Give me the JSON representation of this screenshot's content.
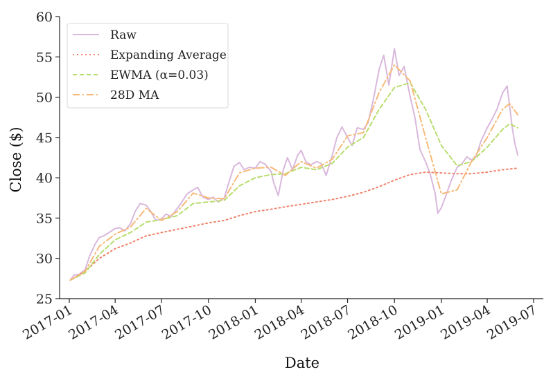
{
  "chart_data": {
    "type": "line",
    "title": "",
    "xlabel": "Date",
    "ylabel": "Close ($)",
    "ylim": [
      25,
      60
    ],
    "yticks": [
      25,
      30,
      35,
      40,
      45,
      50,
      55,
      60
    ],
    "xlim": [
      "2016-12-13",
      "2019-07-20"
    ],
    "xticks": [
      {
        "date": "2017-01-01",
        "label": "2017-01"
      },
      {
        "date": "2017-04-01",
        "label": "2017-04"
      },
      {
        "date": "2017-07-01",
        "label": "2017-07"
      },
      {
        "date": "2017-10-01",
        "label": "2017-10"
      },
      {
        "date": "2018-01-01",
        "label": "2018-01"
      },
      {
        "date": "2018-04-01",
        "label": "2018-04"
      },
      {
        "date": "2018-07-01",
        "label": "2018-07"
      },
      {
        "date": "2018-10-01",
        "label": "2018-10"
      },
      {
        "date": "2019-01-01",
        "label": "2019-01"
      },
      {
        "date": "2019-04-01",
        "label": "2019-04"
      },
      {
        "date": "2019-07-01",
        "label": "2019-07"
      }
    ],
    "grid": false,
    "legend_position": "upper-left",
    "series": [
      {
        "name": "Raw",
        "color": "#d9b8dc",
        "dash": "solid",
        "points": [
          [
            "2017-01-03",
            27.3
          ],
          [
            "2017-01-10",
            27.9
          ],
          [
            "2017-01-20",
            28.0
          ],
          [
            "2017-02-01",
            28.6
          ],
          [
            "2017-02-10",
            30.3
          ],
          [
            "2017-02-20",
            31.7
          ],
          [
            "2017-03-01",
            32.6
          ],
          [
            "2017-03-10",
            32.8
          ],
          [
            "2017-03-20",
            33.2
          ],
          [
            "2017-04-01",
            33.7
          ],
          [
            "2017-04-10",
            33.8
          ],
          [
            "2017-04-20",
            33.4
          ],
          [
            "2017-05-01",
            34.3
          ],
          [
            "2017-05-10",
            35.8
          ],
          [
            "2017-05-20",
            36.8
          ],
          [
            "2017-06-01",
            36.6
          ],
          [
            "2017-06-10",
            35.8
          ],
          [
            "2017-06-20",
            34.7
          ],
          [
            "2017-07-01",
            34.9
          ],
          [
            "2017-07-10",
            35.5
          ],
          [
            "2017-07-20",
            35.2
          ],
          [
            "2017-08-01",
            36.2
          ],
          [
            "2017-08-10",
            37.0
          ],
          [
            "2017-08-20",
            38.0
          ],
          [
            "2017-09-01",
            38.5
          ],
          [
            "2017-09-10",
            38.8
          ],
          [
            "2017-09-20",
            37.6
          ],
          [
            "2017-10-01",
            37.3
          ],
          [
            "2017-10-10",
            37.6
          ],
          [
            "2017-10-20",
            37.0
          ],
          [
            "2017-11-01",
            37.5
          ],
          [
            "2017-11-10",
            39.4
          ],
          [
            "2017-11-20",
            41.4
          ],
          [
            "2017-12-01",
            41.9
          ],
          [
            "2017-12-10",
            41.0
          ],
          [
            "2017-12-20",
            41.3
          ],
          [
            "2018-01-01",
            41.2
          ],
          [
            "2018-01-10",
            42.0
          ],
          [
            "2018-01-20",
            41.7
          ],
          [
            "2018-02-01",
            40.8
          ],
          [
            "2018-02-06",
            39.4
          ],
          [
            "2018-02-15",
            37.8
          ],
          [
            "2018-02-25",
            41.0
          ],
          [
            "2018-03-05",
            42.5
          ],
          [
            "2018-03-15",
            41.0
          ],
          [
            "2018-03-25",
            42.8
          ],
          [
            "2018-04-01",
            43.4
          ],
          [
            "2018-04-10",
            42.0
          ],
          [
            "2018-04-20",
            41.6
          ],
          [
            "2018-05-01",
            42.0
          ],
          [
            "2018-05-10",
            41.8
          ],
          [
            "2018-05-20",
            40.3
          ],
          [
            "2018-06-01",
            42.8
          ],
          [
            "2018-06-10",
            45.0
          ],
          [
            "2018-06-20",
            46.3
          ],
          [
            "2018-07-01",
            45.0
          ],
          [
            "2018-07-10",
            44.0
          ],
          [
            "2018-07-20",
            46.2
          ],
          [
            "2018-08-01",
            46.0
          ],
          [
            "2018-08-10",
            46.8
          ],
          [
            "2018-08-20",
            49.5
          ],
          [
            "2018-09-01",
            53.5
          ],
          [
            "2018-09-10",
            55.2
          ],
          [
            "2018-09-20",
            51.5
          ],
          [
            "2018-10-01",
            56.0
          ],
          [
            "2018-10-10",
            52.7
          ],
          [
            "2018-10-20",
            53.8
          ],
          [
            "2018-11-01",
            50.0
          ],
          [
            "2018-11-10",
            47.5
          ],
          [
            "2018-11-20",
            43.5
          ],
          [
            "2018-12-01",
            42.0
          ],
          [
            "2018-12-10",
            40.5
          ],
          [
            "2018-12-20",
            38.0
          ],
          [
            "2018-12-25",
            35.6
          ],
          [
            "2019-01-01",
            36.3
          ],
          [
            "2019-01-10",
            37.8
          ],
          [
            "2019-01-20",
            39.6
          ],
          [
            "2019-02-01",
            41.3
          ],
          [
            "2019-02-10",
            41.7
          ],
          [
            "2019-02-20",
            42.6
          ],
          [
            "2019-03-01",
            42.2
          ],
          [
            "2019-03-10",
            42.6
          ],
          [
            "2019-03-20",
            44.6
          ],
          [
            "2019-04-01",
            46.2
          ],
          [
            "2019-04-10",
            47.2
          ],
          [
            "2019-04-20",
            48.5
          ],
          [
            "2019-05-01",
            50.5
          ],
          [
            "2019-05-10",
            51.4
          ],
          [
            "2019-05-20",
            46.3
          ],
          [
            "2019-05-25",
            44.3
          ],
          [
            "2019-05-31",
            42.8
          ]
        ]
      },
      {
        "name": "Expanding Average",
        "color": "#f0826b",
        "dash": "dotted",
        "points": [
          [
            "2017-01-03",
            27.3
          ],
          [
            "2017-02-01",
            28.4
          ],
          [
            "2017-03-01",
            30.0
          ],
          [
            "2017-04-01",
            31.2
          ],
          [
            "2017-05-01",
            31.9
          ],
          [
            "2017-06-01",
            32.8
          ],
          [
            "2017-07-01",
            33.2
          ],
          [
            "2017-08-01",
            33.6
          ],
          [
            "2017-09-01",
            34.0
          ],
          [
            "2017-10-01",
            34.4
          ],
          [
            "2017-11-01",
            34.7
          ],
          [
            "2017-12-01",
            35.3
          ],
          [
            "2018-01-01",
            35.8
          ],
          [
            "2018-02-01",
            36.1
          ],
          [
            "2018-03-01",
            36.4
          ],
          [
            "2018-04-01",
            36.7
          ],
          [
            "2018-05-01",
            37.0
          ],
          [
            "2018-06-01",
            37.3
          ],
          [
            "2018-07-01",
            37.7
          ],
          [
            "2018-08-01",
            38.2
          ],
          [
            "2018-09-01",
            38.9
          ],
          [
            "2018-10-01",
            39.7
          ],
          [
            "2018-11-01",
            40.4
          ],
          [
            "2018-12-01",
            40.7
          ],
          [
            "2019-01-01",
            40.6
          ],
          [
            "2019-02-01",
            40.5
          ],
          [
            "2019-03-01",
            40.5
          ],
          [
            "2019-04-01",
            40.7
          ],
          [
            "2019-05-01",
            41.0
          ],
          [
            "2019-05-31",
            41.2
          ]
        ]
      },
      {
        "name": "EWMA (α=0.03)",
        "color": "#b8dc6c",
        "dash": "dashed",
        "points": [
          [
            "2017-01-03",
            27.3
          ],
          [
            "2017-02-01",
            28.2
          ],
          [
            "2017-03-01",
            30.5
          ],
          [
            "2017-04-01",
            32.3
          ],
          [
            "2017-05-01",
            33.2
          ],
          [
            "2017-06-01",
            34.5
          ],
          [
            "2017-07-01",
            34.8
          ],
          [
            "2017-08-01",
            35.3
          ],
          [
            "2017-09-01",
            36.8
          ],
          [
            "2017-10-01",
            37.0
          ],
          [
            "2017-11-01",
            37.2
          ],
          [
            "2017-12-01",
            39.0
          ],
          [
            "2018-01-01",
            40.0
          ],
          [
            "2018-02-01",
            40.4
          ],
          [
            "2018-03-01",
            40.5
          ],
          [
            "2018-04-01",
            41.3
          ],
          [
            "2018-05-01",
            41.0
          ],
          [
            "2018-06-01",
            41.8
          ],
          [
            "2018-07-01",
            43.8
          ],
          [
            "2018-08-01",
            45.0
          ],
          [
            "2018-09-01",
            48.5
          ],
          [
            "2018-10-01",
            51.2
          ],
          [
            "2018-11-01",
            51.8
          ],
          [
            "2018-12-01",
            48.5
          ],
          [
            "2019-01-01",
            44.0
          ],
          [
            "2019-02-01",
            41.5
          ],
          [
            "2019-03-01",
            42.0
          ],
          [
            "2019-04-01",
            43.8
          ],
          [
            "2019-05-01",
            46.0
          ],
          [
            "2019-05-15",
            46.7
          ],
          [
            "2019-05-31",
            46.2
          ]
        ]
      },
      {
        "name": "28D MA",
        "color": "#f7b977",
        "dash": "dashdot",
        "points": [
          [
            "2017-01-03",
            27.3
          ],
          [
            "2017-02-01",
            28.4
          ],
          [
            "2017-03-01",
            31.5
          ],
          [
            "2017-04-01",
            33.0
          ],
          [
            "2017-05-01",
            33.9
          ],
          [
            "2017-06-01",
            36.2
          ],
          [
            "2017-07-01",
            34.7
          ],
          [
            "2017-08-01",
            35.8
          ],
          [
            "2017-09-01",
            38.1
          ],
          [
            "2017-10-01",
            37.5
          ],
          [
            "2017-11-01",
            37.4
          ],
          [
            "2017-12-01",
            40.6
          ],
          [
            "2018-01-01",
            41.2
          ],
          [
            "2018-02-01",
            41.3
          ],
          [
            "2018-03-01",
            40.3
          ],
          [
            "2018-04-01",
            42.0
          ],
          [
            "2018-05-01",
            41.2
          ],
          [
            "2018-06-01",
            42.3
          ],
          [
            "2018-07-01",
            45.2
          ],
          [
            "2018-08-01",
            45.6
          ],
          [
            "2018-09-01",
            50.6
          ],
          [
            "2018-10-01",
            54.0
          ],
          [
            "2018-11-01",
            52.0
          ],
          [
            "2018-12-01",
            45.0
          ],
          [
            "2019-01-01",
            38.0
          ],
          [
            "2019-02-01",
            38.5
          ],
          [
            "2019-03-01",
            42.0
          ],
          [
            "2019-04-01",
            45.0
          ],
          [
            "2019-05-01",
            48.5
          ],
          [
            "2019-05-15",
            49.2
          ],
          [
            "2019-05-31",
            47.8
          ]
        ]
      }
    ]
  }
}
